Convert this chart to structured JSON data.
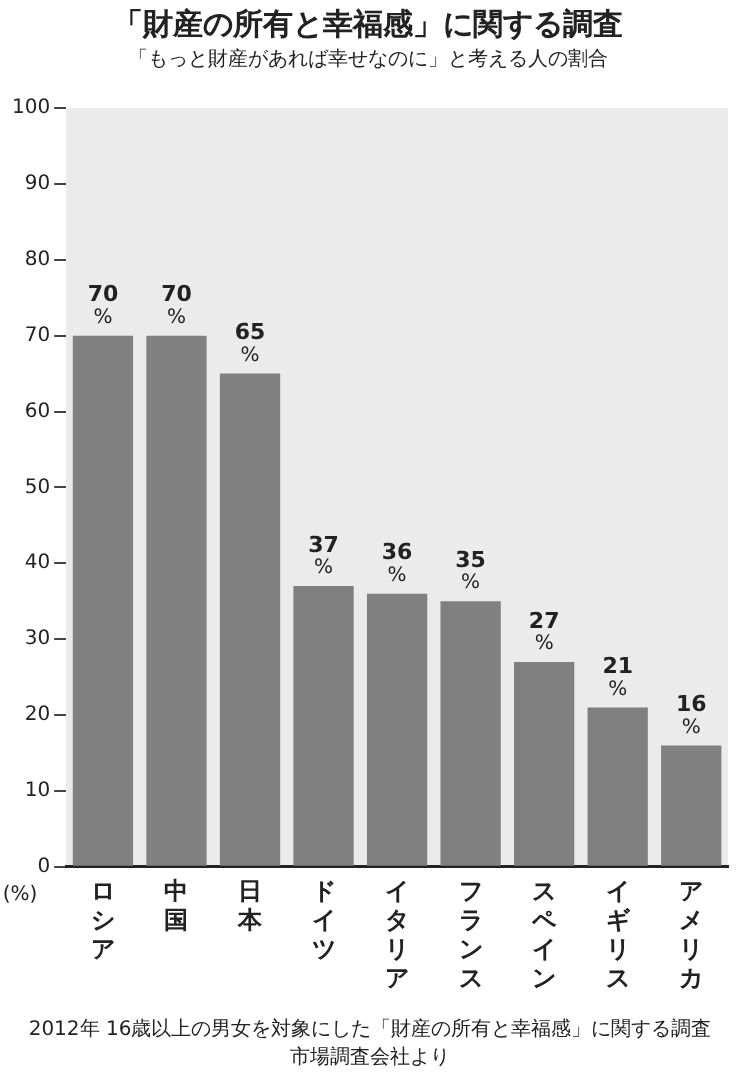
{
  "chart_data": {
    "type": "bar",
    "title": "「財産の所有と幸福感」に関する調査",
    "subtitle": "「もっと財産があれば幸せなのに」と考える人の割合",
    "ylabel": "(%)",
    "categories": [
      "ロシア",
      "中国",
      "日本",
      "ドイツ",
      "イタリア",
      "フランス",
      "スペイン",
      "イギリス",
      "アメリカ"
    ],
    "values": [
      70,
      70,
      65,
      37,
      36,
      35,
      27,
      21,
      16
    ],
    "value_labels": [
      "70%",
      "70%",
      "65%",
      "37%",
      "36%",
      "35%",
      "27%",
      "21%",
      "16%"
    ],
    "color": "#808080",
    "ylim": [
      0,
      100
    ],
    "yticks": [
      0,
      10,
      20,
      30,
      40,
      50,
      60,
      70,
      80,
      90,
      100
    ],
    "grid": false,
    "legend": false,
    "annotations": [
      "2012年 16歳以上の男女を対象にした「財産の所有と幸福感」に関する調査",
      "市場調査会社より"
    ]
  }
}
